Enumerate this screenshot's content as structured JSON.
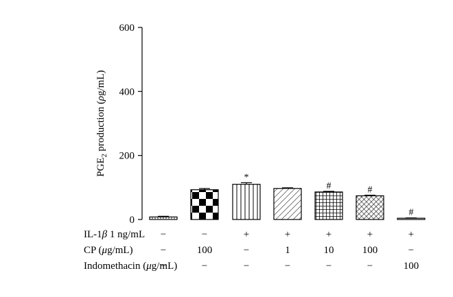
{
  "chart_data": {
    "type": "bar",
    "ylabel_parts": [
      "PGE",
      "2",
      " production (",
      "ρ",
      "g/mL)"
    ],
    "ylim": [
      0,
      600
    ],
    "yticks": [
      0,
      200,
      400,
      600
    ],
    "grid": false,
    "values": [
      8,
      93,
      110,
      97,
      86,
      74,
      4
    ],
    "errors": [
      2,
      4,
      5,
      2,
      2,
      2,
      1
    ],
    "patterns": [
      "dots",
      "checker",
      "vlines",
      "diag",
      "grid",
      "crosshatch",
      "dots"
    ],
    "annotations": [
      "",
      "",
      "*",
      "",
      "#",
      "#",
      "#"
    ],
    "condition_rows": [
      {
        "label_parts": [
          "IL-1",
          "β",
          " 1 ng/mL"
        ],
        "values": [
          "−",
          "−",
          "+",
          "+",
          "+",
          "+",
          "+"
        ]
      },
      {
        "label_parts": [
          "CP (",
          "μ",
          "g/mL)"
        ],
        "values": [
          "−",
          "100",
          "−",
          "1",
          "10",
          "100",
          "−"
        ]
      },
      {
        "label_parts": [
          "Indomethacin (",
          "μ",
          "g/mL)"
        ],
        "values": [
          "−",
          "−",
          "−",
          "−",
          "−",
          "−",
          "100"
        ]
      }
    ]
  }
}
